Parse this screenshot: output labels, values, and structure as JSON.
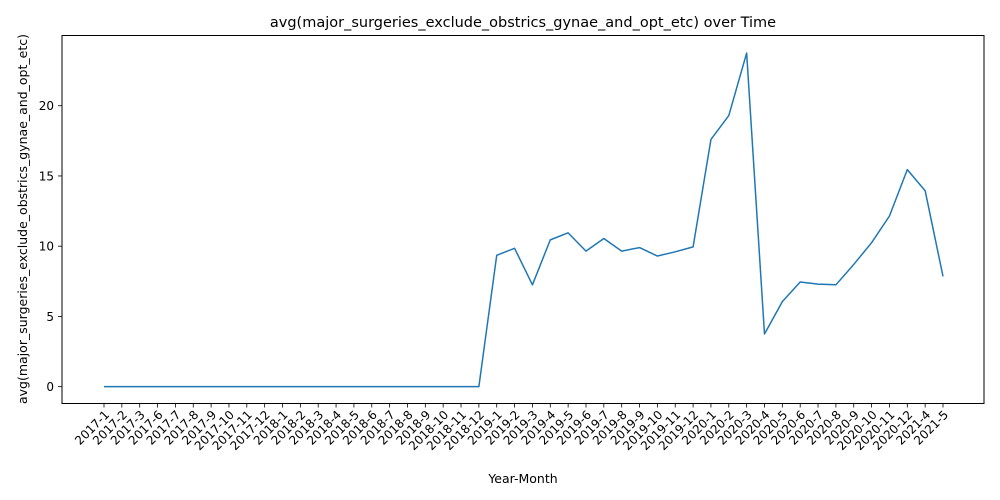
{
  "chart_data": {
    "type": "line",
    "title": "avg(major_surgeries_exclude_obstrics_gynae_and_opt_etc) over Time",
    "xlabel": "Year-Month",
    "ylabel": "avg(major_surgeries_exclude_obstrics_gynae_and_opt_etc)",
    "ylim": [
      -1.2,
      25.0
    ],
    "yticks": [
      0,
      5,
      10,
      15,
      20
    ],
    "grid": false,
    "line_color": "#1f77b4",
    "categories": [
      "2017-1",
      "2017-2",
      "2017-3",
      "2017-6",
      "2017-7",
      "2017-8",
      "2017-9",
      "2017-10",
      "2017-11",
      "2017-12",
      "2018-1",
      "2018-2",
      "2018-3",
      "2018-4",
      "2018-5",
      "2018-6",
      "2018-7",
      "2018-8",
      "2018-9",
      "2018-10",
      "2018-11",
      "2018-12",
      "2019-1",
      "2019-2",
      "2019-3",
      "2019-4",
      "2019-5",
      "2019-6",
      "2019-7",
      "2019-8",
      "2019-9",
      "2019-10",
      "2019-11",
      "2019-12",
      "2020-1",
      "2020-2",
      "2020-3",
      "2020-4",
      "2020-5",
      "2020-6",
      "2020-7",
      "2020-8",
      "2020-9",
      "2020-10",
      "2020-11",
      "2020-12",
      "2021-4",
      "2021-5"
    ],
    "values": [
      0,
      0,
      0,
      0,
      0,
      0,
      0,
      0,
      0,
      0,
      0,
      0,
      0,
      0,
      0,
      0,
      0,
      0,
      0,
      0,
      0,
      0,
      9.35,
      9.85,
      7.25,
      10.45,
      10.95,
      9.65,
      10.55,
      9.65,
      9.9,
      9.3,
      9.6,
      9.95,
      17.6,
      19.3,
      23.75,
      3.75,
      6.05,
      7.45,
      7.3,
      7.25,
      8.7,
      10.25,
      12.15,
      15.45,
      13.95,
      7.85
    ]
  }
}
